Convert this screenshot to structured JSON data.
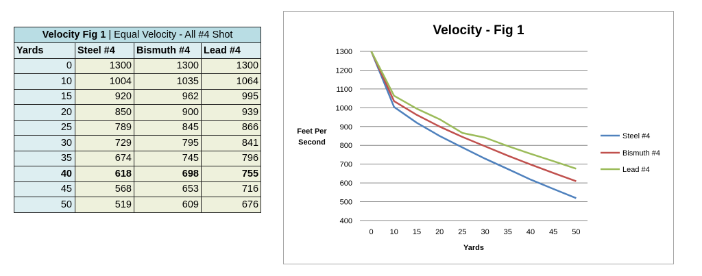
{
  "table": {
    "title_bold": "Velocity Fig 1",
    "title_rest": " | Equal Velocity - All #4 Shot",
    "headers": [
      "Yards",
      "Steel #4",
      "Bismuth #4",
      "Lead #4"
    ],
    "rows": [
      [
        "0",
        "1300",
        "1300",
        "1300"
      ],
      [
        "10",
        "1004",
        "1035",
        "1064"
      ],
      [
        "15",
        "920",
        "962",
        "995"
      ],
      [
        "20",
        "850",
        "900",
        "939"
      ],
      [
        "25",
        "789",
        "845",
        "866"
      ],
      [
        "30",
        "729",
        "795",
        "841"
      ],
      [
        "35",
        "674",
        "745",
        "796"
      ],
      [
        "40",
        "618",
        "698",
        "755"
      ],
      [
        "45",
        "568",
        "653",
        "716"
      ],
      [
        "50",
        "519",
        "609",
        "676"
      ]
    ],
    "bold_row_index": 7
  },
  "chart_data": {
    "type": "line",
    "title": "Velocity - Fig 1",
    "xlabel": "Yards",
    "ylabel": "Feet Per Second",
    "categories": [
      "0",
      "10",
      "15",
      "20",
      "25",
      "30",
      "35",
      "40",
      "45",
      "50"
    ],
    "series": [
      {
        "name": "Steel #4",
        "color": "#4f81bd",
        "values": [
          1300,
          1004,
          920,
          850,
          789,
          729,
          674,
          618,
          568,
          519
        ]
      },
      {
        "name": "Bismuth #4",
        "color": "#c0504d",
        "values": [
          1300,
          1035,
          962,
          900,
          845,
          795,
          745,
          698,
          653,
          609
        ]
      },
      {
        "name": "Lead #4",
        "color": "#9bbb59",
        "values": [
          1300,
          1064,
          995,
          939,
          866,
          841,
          796,
          755,
          716,
          676
        ]
      }
    ],
    "ylim": [
      400,
      1300
    ],
    "yticks": [
      400,
      500,
      600,
      700,
      800,
      900,
      1000,
      1100,
      1200,
      1300
    ],
    "grid": true,
    "legend": "right"
  }
}
